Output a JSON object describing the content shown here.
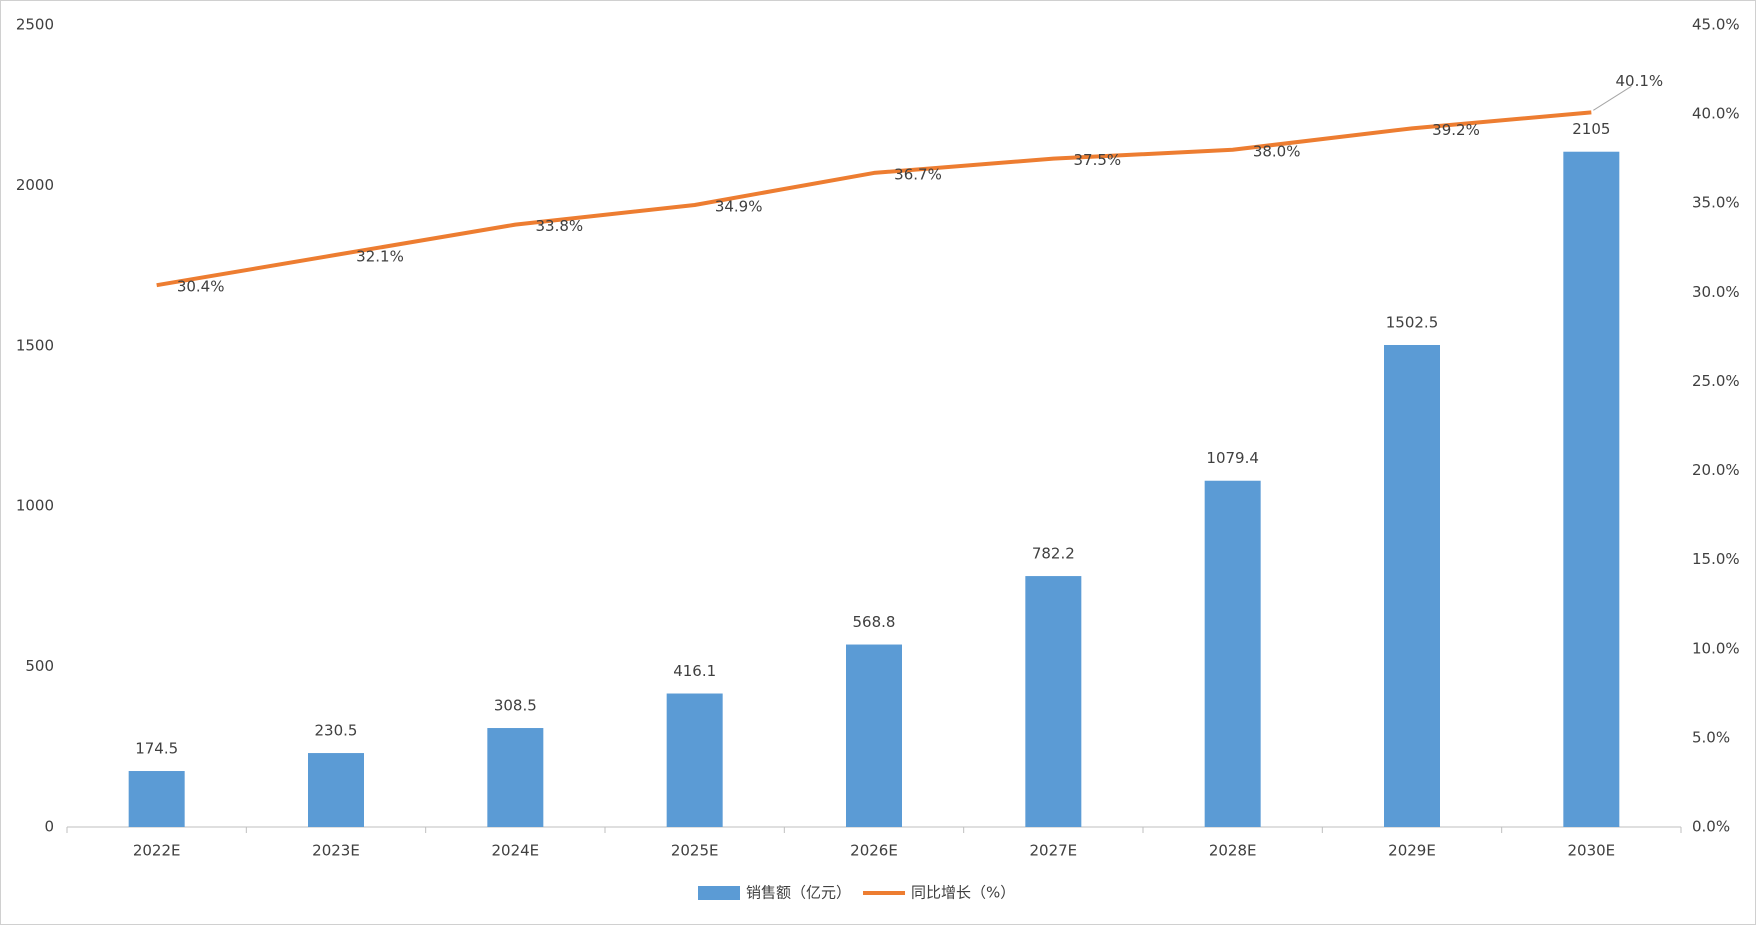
{
  "chart_data": {
    "type": "bar",
    "categories": [
      "2022E",
      "2023E",
      "2024E",
      "2025E",
      "2026E",
      "2027E",
      "2028E",
      "2029E",
      "2030E"
    ],
    "series": [
      {
        "name": "销售额（亿元）",
        "type": "bar",
        "color": "#5b9bd5",
        "values": [
          174.5,
          230.5,
          308.5,
          416.1,
          568.8,
          782.2,
          1079.4,
          1502.5,
          2105
        ]
      },
      {
        "name": "同比增长（%）",
        "type": "line",
        "axis": "y2",
        "color": "#ed7d31",
        "values": [
          30.4,
          32.1,
          33.8,
          34.9,
          36.7,
          37.5,
          38.0,
          39.2,
          40.1
        ],
        "value_labels": [
          "30.4%",
          "32.1%",
          "33.8%",
          "34.9%",
          "36.7%",
          "37.5%",
          "38.0%",
          "39.2%",
          "40.1%"
        ]
      }
    ],
    "ylim": [
      0,
      2500
    ],
    "yticks": [
      0,
      500,
      1000,
      1500,
      2000,
      2500
    ],
    "y2lim": [
      0,
      45
    ],
    "y2ticks": [
      {
        "value": 0,
        "label": "0.0%"
      },
      {
        "value": 5,
        "label": "5.0%"
      },
      {
        "value": 10,
        "label": "10.0%"
      },
      {
        "value": 15,
        "label": "15.0%"
      },
      {
        "value": 20,
        "label": "20.0%"
      },
      {
        "value": 25,
        "label": "25.0%"
      },
      {
        "value": 30,
        "label": "30.0%"
      },
      {
        "value": 35,
        "label": "35.0%"
      },
      {
        "value": 40,
        "label": "40.0%"
      },
      {
        "value": 45,
        "label": "45.0%"
      }
    ],
    "grid": false,
    "legend": "bottom"
  }
}
